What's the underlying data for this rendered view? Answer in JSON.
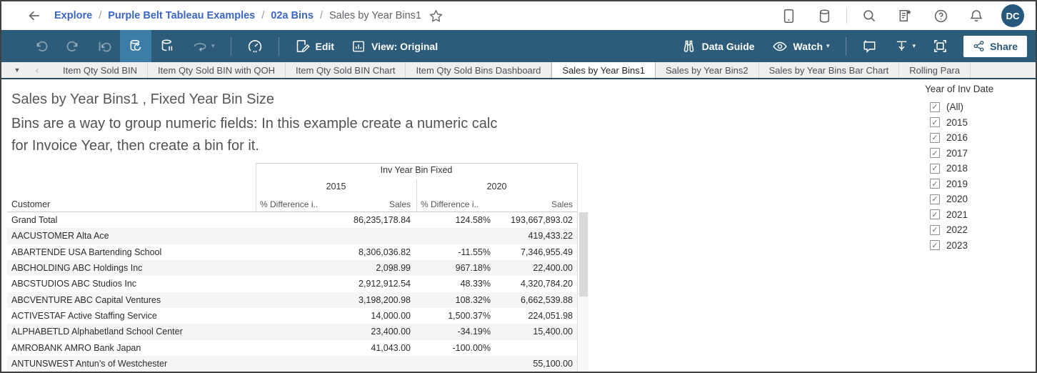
{
  "topbar": {
    "breadcrumb": {
      "links": [
        "Explore",
        "Purple Belt Tableau Examples",
        "02a Bins"
      ],
      "separator": "/",
      "current": "Sales by Year Bins1"
    },
    "right_icons": [
      "device-icon",
      "database-icon",
      "divider",
      "search-icon",
      "document-star-icon",
      "help-icon",
      "bell-icon",
      "avatar"
    ],
    "avatar_initials": "DC"
  },
  "toolbar": {
    "left_icons": [
      "undo-icon",
      "redo-icon",
      "revert-icon",
      "refresh-data-icon",
      "pause-updates-icon",
      "auto-update-icon",
      "gauge-icon"
    ],
    "edit_label": "Edit",
    "view_label": "View: Original",
    "data_guide_label": "Data Guide",
    "watch_label": "Watch",
    "share_label": "Share"
  },
  "tabs": {
    "items": [
      "Item Qty Sold BIN",
      "Item Qty Sold BIN with QOH",
      "Item Qty Sold BIN Chart",
      "Item Qty Sold Bins Dashboard",
      "Sales by Year Bins1",
      "Sales by Year Bins2",
      "Sales by Year Bins Bar Chart",
      "Rolling Para"
    ],
    "active_index": 4
  },
  "sheet": {
    "title": "Sales by Year Bins1 , Fixed Year Bin Size",
    "subtitle_line1": "Bins are a way to group numeric fields: In this example create a numeric calc",
    "subtitle_line2": "for Invoice Year, then create a bin for it."
  },
  "table": {
    "column_group_label": "Inv Year Bin Fixed",
    "years": [
      "2015",
      "2020"
    ],
    "measures": [
      "% Difference i..",
      "Sales"
    ],
    "row_header": "Customer",
    "rows": [
      [
        "Grand Total",
        "",
        "86,235,178.84",
        "124.58%",
        "193,667,893.02"
      ],
      [
        "AACUSTOMER Alta Ace",
        "",
        "",
        "",
        "419,433.22"
      ],
      [
        "ABARTENDE USA Bartending School",
        "",
        "8,306,036.82",
        "-11.55%",
        "7,346,955.49"
      ],
      [
        "ABCHOLDING ABC Holdings Inc",
        "",
        "2,098.99",
        "967.18%",
        "22,400.00"
      ],
      [
        "ABCSTUDIOS ABC Studios Inc",
        "",
        "2,912,912.54",
        "48.33%",
        "4,320,784.20"
      ],
      [
        "ABCVENTURE ABC Capital Ventures",
        "",
        "3,198,200.98",
        "108.32%",
        "6,662,539.88"
      ],
      [
        "ACTIVESTAF Active Staffing Service",
        "",
        "14,000.00",
        "1,500.37%",
        "224,051.98"
      ],
      [
        "ALPHABETLD Alphabetland School Center",
        "",
        "23,400.00",
        "-34.19%",
        "15,400.00"
      ],
      [
        "AMROBANK AMRO Bank Japan",
        "",
        "41,043.00",
        "-100.00%",
        ""
      ],
      [
        "ANTUNSWEST Antun’s of Westchester",
        "",
        "",
        "",
        "55,100.00"
      ]
    ]
  },
  "filter": {
    "title": "Year of Inv Date",
    "options": [
      "(All)",
      "2015",
      "2016",
      "2017",
      "2018",
      "2019",
      "2020",
      "2021",
      "2022",
      "2023"
    ],
    "all_checked": true
  },
  "icons": {
    "check": "✓",
    "caret_down": "▾",
    "tab_dropdown": "▼",
    "tab_prev": "‹"
  },
  "colors": {
    "toolbar_bg": "#2d5c7a",
    "toolbar_highlight": "#3d7ca6",
    "link_blue": "#3a65c2",
    "avatar_bg": "#26587d",
    "tab_strip_border": "#2b4f68",
    "band_row": "#f5f5f5"
  }
}
